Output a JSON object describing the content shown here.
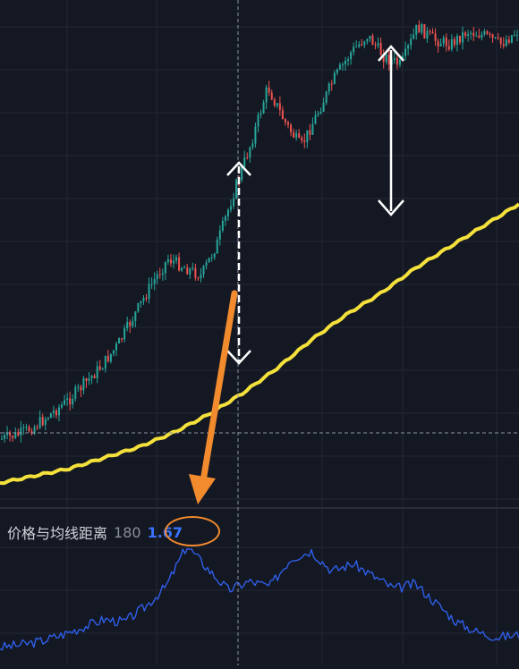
{
  "indicator": {
    "title": "价格与均线距离",
    "period": "180",
    "value": "1.67"
  },
  "colors": {
    "background": "#141823",
    "grid": "#232735",
    "candle_up": "#26a69a",
    "candle_down": "#ef5350",
    "moving_average": "#f5e13c",
    "indicator_line": "#2f5ee8",
    "annotation_arrow_white": "#ffffff",
    "annotation_arrow_orange": "#f28a2e"
  },
  "chart_data": [
    {
      "type": "candlestick",
      "description_series": [
        "price candles",
        "moving average 180"
      ],
      "price_path": [
        0.04,
        0.05,
        0.07,
        0.1,
        0.13,
        0.17,
        0.21,
        0.26,
        0.33,
        0.4,
        0.46,
        0.44,
        0.42,
        0.5,
        0.62,
        0.73,
        0.86,
        0.78,
        0.72,
        0.8,
        0.88,
        0.94,
        0.98,
        0.93,
        0.91,
        1.0,
        0.97,
        0.96,
        0.99,
        0.98,
        0.96,
        0.99
      ],
      "ma_path": [
        0.0,
        0.02,
        0.04,
        0.07,
        0.1,
        0.14,
        0.19,
        0.25,
        0.32,
        0.4,
        0.47,
        0.53,
        0.6,
        0.66,
        0.72,
        0.78
      ],
      "grid": true,
      "crosshair": true
    },
    {
      "type": "line",
      "name": "价格与均线距离 180",
      "values": [
        0.1,
        0.12,
        0.15,
        0.2,
        0.26,
        0.32,
        0.3,
        0.42,
        0.58,
        0.9,
        0.72,
        0.55,
        0.62,
        0.58,
        0.8,
        0.86,
        0.7,
        0.76,
        0.66,
        0.56,
        0.6,
        0.45,
        0.3,
        0.22,
        0.18,
        0.2
      ],
      "last_value": 1.67,
      "grid": true
    }
  ]
}
